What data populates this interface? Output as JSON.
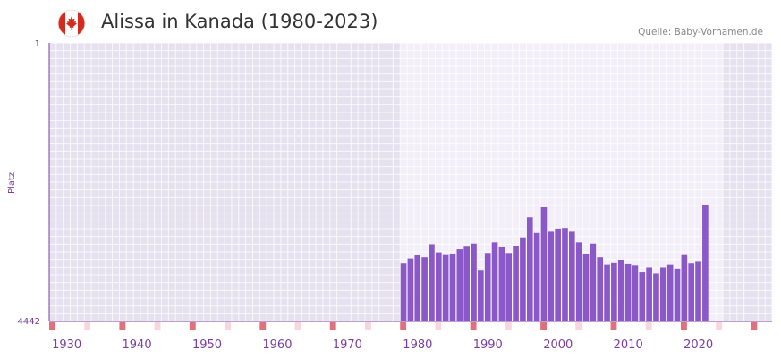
{
  "header": {
    "title": "Alissa in Kanada (1980-2023)",
    "source": "Quelle: Baby-Vornamen.de",
    "flag_icon": "canada-flag-icon"
  },
  "colors": {
    "bar": "#8a58c8",
    "axis": "#7a3fa0",
    "decade_marker": "#e0707a",
    "half_decade_marker": "#f8d6dc",
    "highlight_bg": "#f3eff9",
    "outside_bg": "#e6e1ef",
    "flag_red": "#d52b1e"
  },
  "chart_data": {
    "type": "bar",
    "title": "Alissa in Kanada (1980-2023)",
    "xlabel": "",
    "ylabel": "Platz",
    "y_axis_inverted": true,
    "ylim": [
      1,
      4442
    ],
    "y_tick_labels": [
      "1",
      "4442"
    ],
    "xlim": [
      1928,
      2030
    ],
    "highlight_range": [
      1978,
      2023
    ],
    "x_tick_labels": [
      "1930",
      "1940",
      "1950",
      "1960",
      "1970",
      "1980",
      "1990",
      "2000",
      "2010",
      "2020"
    ],
    "categories": [
      1978,
      1979,
      1980,
      1981,
      1982,
      1983,
      1984,
      1985,
      1986,
      1987,
      1988,
      1989,
      1990,
      1991,
      1992,
      1993,
      1994,
      1995,
      1996,
      1997,
      1998,
      1999,
      2000,
      2001,
      2002,
      2003,
      2004,
      2005,
      2006,
      2007,
      2008,
      2009,
      2010,
      2011,
      2012,
      2013,
      2014,
      2015,
      2016,
      2017,
      2018,
      2019,
      2020,
      2021,
      2022
    ],
    "values": [
      3520,
      3440,
      3380,
      3420,
      3210,
      3340,
      3370,
      3360,
      3290,
      3250,
      3200,
      3620,
      3350,
      3180,
      3260,
      3350,
      3240,
      3100,
      2780,
      3030,
      2620,
      3010,
      2960,
      2950,
      3010,
      3180,
      3360,
      3200,
      3420,
      3540,
      3500,
      3460,
      3530,
      3550,
      3660,
      3580,
      3680,
      3580,
      3540,
      3600,
      3370,
      3520,
      3480,
      2590,
      4442
    ]
  }
}
